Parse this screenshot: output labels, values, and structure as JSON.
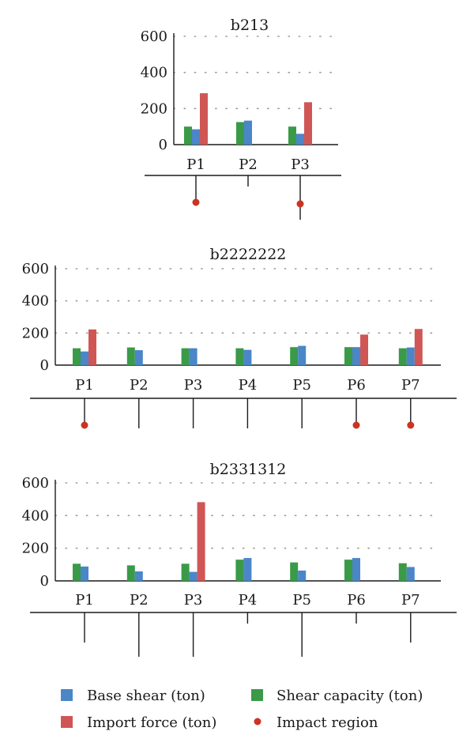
{
  "colors": {
    "base_shear": "#4a86c8",
    "shear_capacity": "#3a9a48",
    "import_force": "#d05656",
    "impact_region": "#cc3322",
    "axis": "#1a1a1a",
    "grid": "#999999"
  },
  "legend": {
    "base_shear": "Base shear (ton)",
    "shear_capacity": "Shear capacity (ton)",
    "import_force": "Import force (ton)",
    "impact_region": "Impact region"
  },
  "chart_data": [
    {
      "type": "bar",
      "title": "b213",
      "categories": [
        "P1",
        "P2",
        "P3"
      ],
      "ylim": [
        0,
        600
      ],
      "yticks": [
        "0",
        "200",
        "400",
        "600"
      ],
      "grid": "dotted horizontal",
      "series": [
        {
          "name": "Shear capacity (ton)",
          "values": [
            100,
            125,
            100
          ]
        },
        {
          "name": "Base shear (ton)",
          "values": [
            85,
            133,
            60
          ]
        },
        {
          "name": "Import force (ton)",
          "values": [
            285,
            0,
            235
          ]
        }
      ],
      "impact_region": [
        true,
        false,
        true
      ],
      "pile_length": [
        "medium",
        "short",
        "long"
      ]
    },
    {
      "type": "bar",
      "title": "b2222222",
      "categories": [
        "P1",
        "P2",
        "P3",
        "P4",
        "P5",
        "P6",
        "P7"
      ],
      "ylim": [
        0,
        600
      ],
      "yticks": [
        "0",
        "200",
        "400",
        "600"
      ],
      "grid": "dotted horizontal",
      "series": [
        {
          "name": "Shear capacity (ton)",
          "values": [
            105,
            110,
            105,
            105,
            112,
            112,
            105
          ]
        },
        {
          "name": "Base shear (ton)",
          "values": [
            85,
            93,
            105,
            95,
            120,
            112,
            110
          ]
        },
        {
          "name": "Import force (ton)",
          "values": [
            222,
            0,
            0,
            0,
            0,
            190,
            225
          ]
        }
      ],
      "impact_region": [
        true,
        false,
        false,
        false,
        false,
        true,
        true
      ],
      "pile_length": [
        "medium",
        "medium",
        "medium",
        "medium",
        "medium",
        "medium",
        "medium"
      ]
    },
    {
      "type": "bar",
      "title": "b2331312",
      "categories": [
        "P1",
        "P2",
        "P3",
        "P4",
        "P5",
        "P6",
        "P7"
      ],
      "ylim": [
        0,
        600
      ],
      "yticks": [
        "0",
        "200",
        "400",
        "600"
      ],
      "grid": "dotted horizontal",
      "series": [
        {
          "name": "Shear capacity (ton)",
          "values": [
            105,
            95,
            105,
            130,
            113,
            130,
            108
          ]
        },
        {
          "name": "Base shear (ton)",
          "values": [
            88,
            58,
            55,
            140,
            63,
            140,
            85
          ]
        },
        {
          "name": "Import force (ton)",
          "values": [
            0,
            0,
            482,
            0,
            0,
            0,
            0
          ]
        }
      ],
      "impact_region": [
        false,
        false,
        false,
        false,
        false,
        false,
        false
      ],
      "pile_length": [
        "medium",
        "long",
        "long",
        "short",
        "long",
        "short",
        "medium"
      ]
    }
  ]
}
